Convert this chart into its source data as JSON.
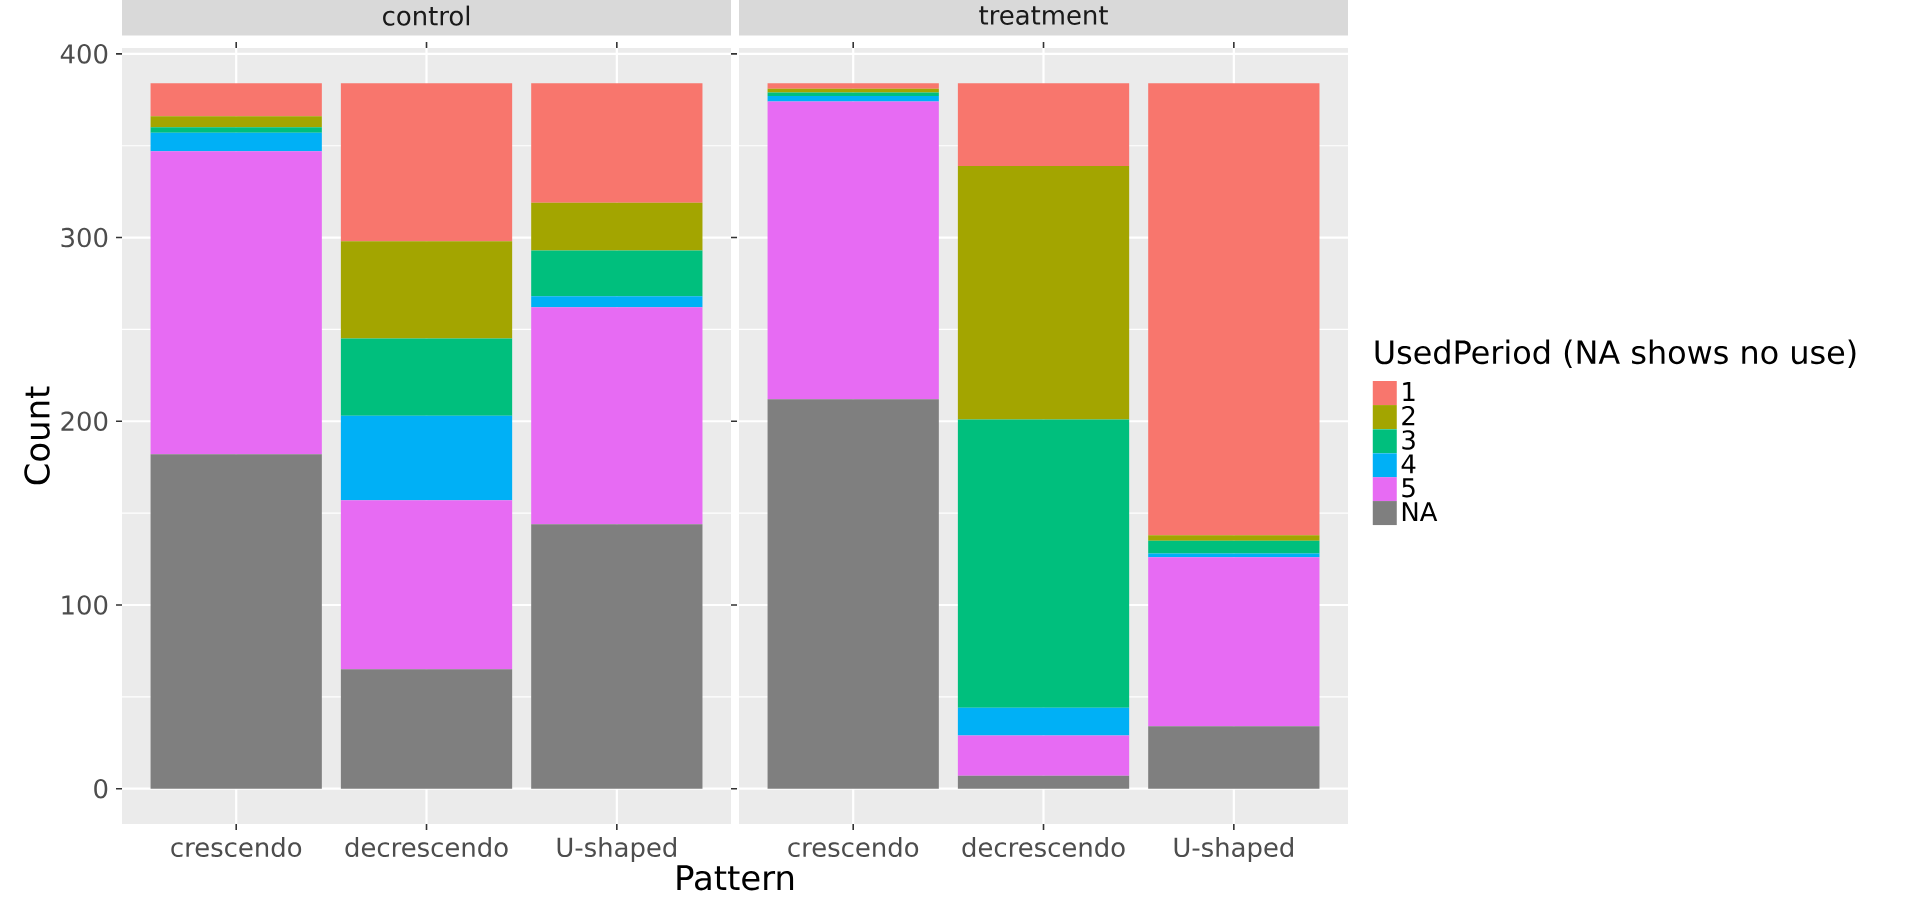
{
  "chart_data": [
    {
      "type": "bar",
      "stacked": true,
      "title": "control",
      "xlabel": "Pattern",
      "ylabel": "Count",
      "categories": [
        "crescendo",
        "decrescendo",
        "U-shaped"
      ],
      "series": [
        {
          "color": "#7F7F7F",
          "values": [
            182,
            65,
            144
          ]
        },
        {
          "color": "#E76BF3",
          "values": [
            165,
            92,
            118
          ]
        },
        {
          "color": "#00B0F6",
          "values": [
            10,
            46,
            6
          ]
        },
        {
          "color": "#00BF7D",
          "values": [
            3,
            42,
            25
          ]
        },
        {
          "color": "#A3A500",
          "values": [
            6,
            53,
            26
          ]
        },
        {
          "color": "#F8766D",
          "values": [
            18,
            86,
            65
          ]
        }
      ],
      "ylim": [
        -19.2,
        403.2
      ],
      "yticks": [
        0,
        100,
        200,
        300,
        400
      ],
      "grid": true
    },
    {
      "type": "bar",
      "stacked": true,
      "title": "treatment",
      "categories": [
        "crescendo",
        "decrescendo",
        "U-shaped"
      ],
      "series": [
        {
          "name": "NA",
          "color": "#7F7F7F",
          "values": [
            212,
            7,
            34
          ]
        },
        {
          "name": "5",
          "color": "#E76BF3",
          "values": [
            162,
            22,
            92
          ]
        },
        {
          "name": "4",
          "color": "#00B0F6",
          "values": [
            3,
            15,
            2
          ]
        },
        {
          "name": "3",
          "color": "#00BF7D",
          "values": [
            2,
            157,
            7
          ]
        },
        {
          "name": "2",
          "color": "#A3A500",
          "values": [
            2,
            138,
            3
          ]
        },
        {
          "name": "1",
          "color": "#F8766D",
          "values": [
            3,
            45,
            246
          ]
        }
      ],
      "ylim": [
        -19.2,
        403.2
      ],
      "yticks": [
        0,
        100,
        200,
        300,
        400
      ],
      "grid": true,
      "tick_labels": "x",
      "legend": "right",
      "legend_title": "UsedPeriod (NA shows no use)"
    }
  ]
}
